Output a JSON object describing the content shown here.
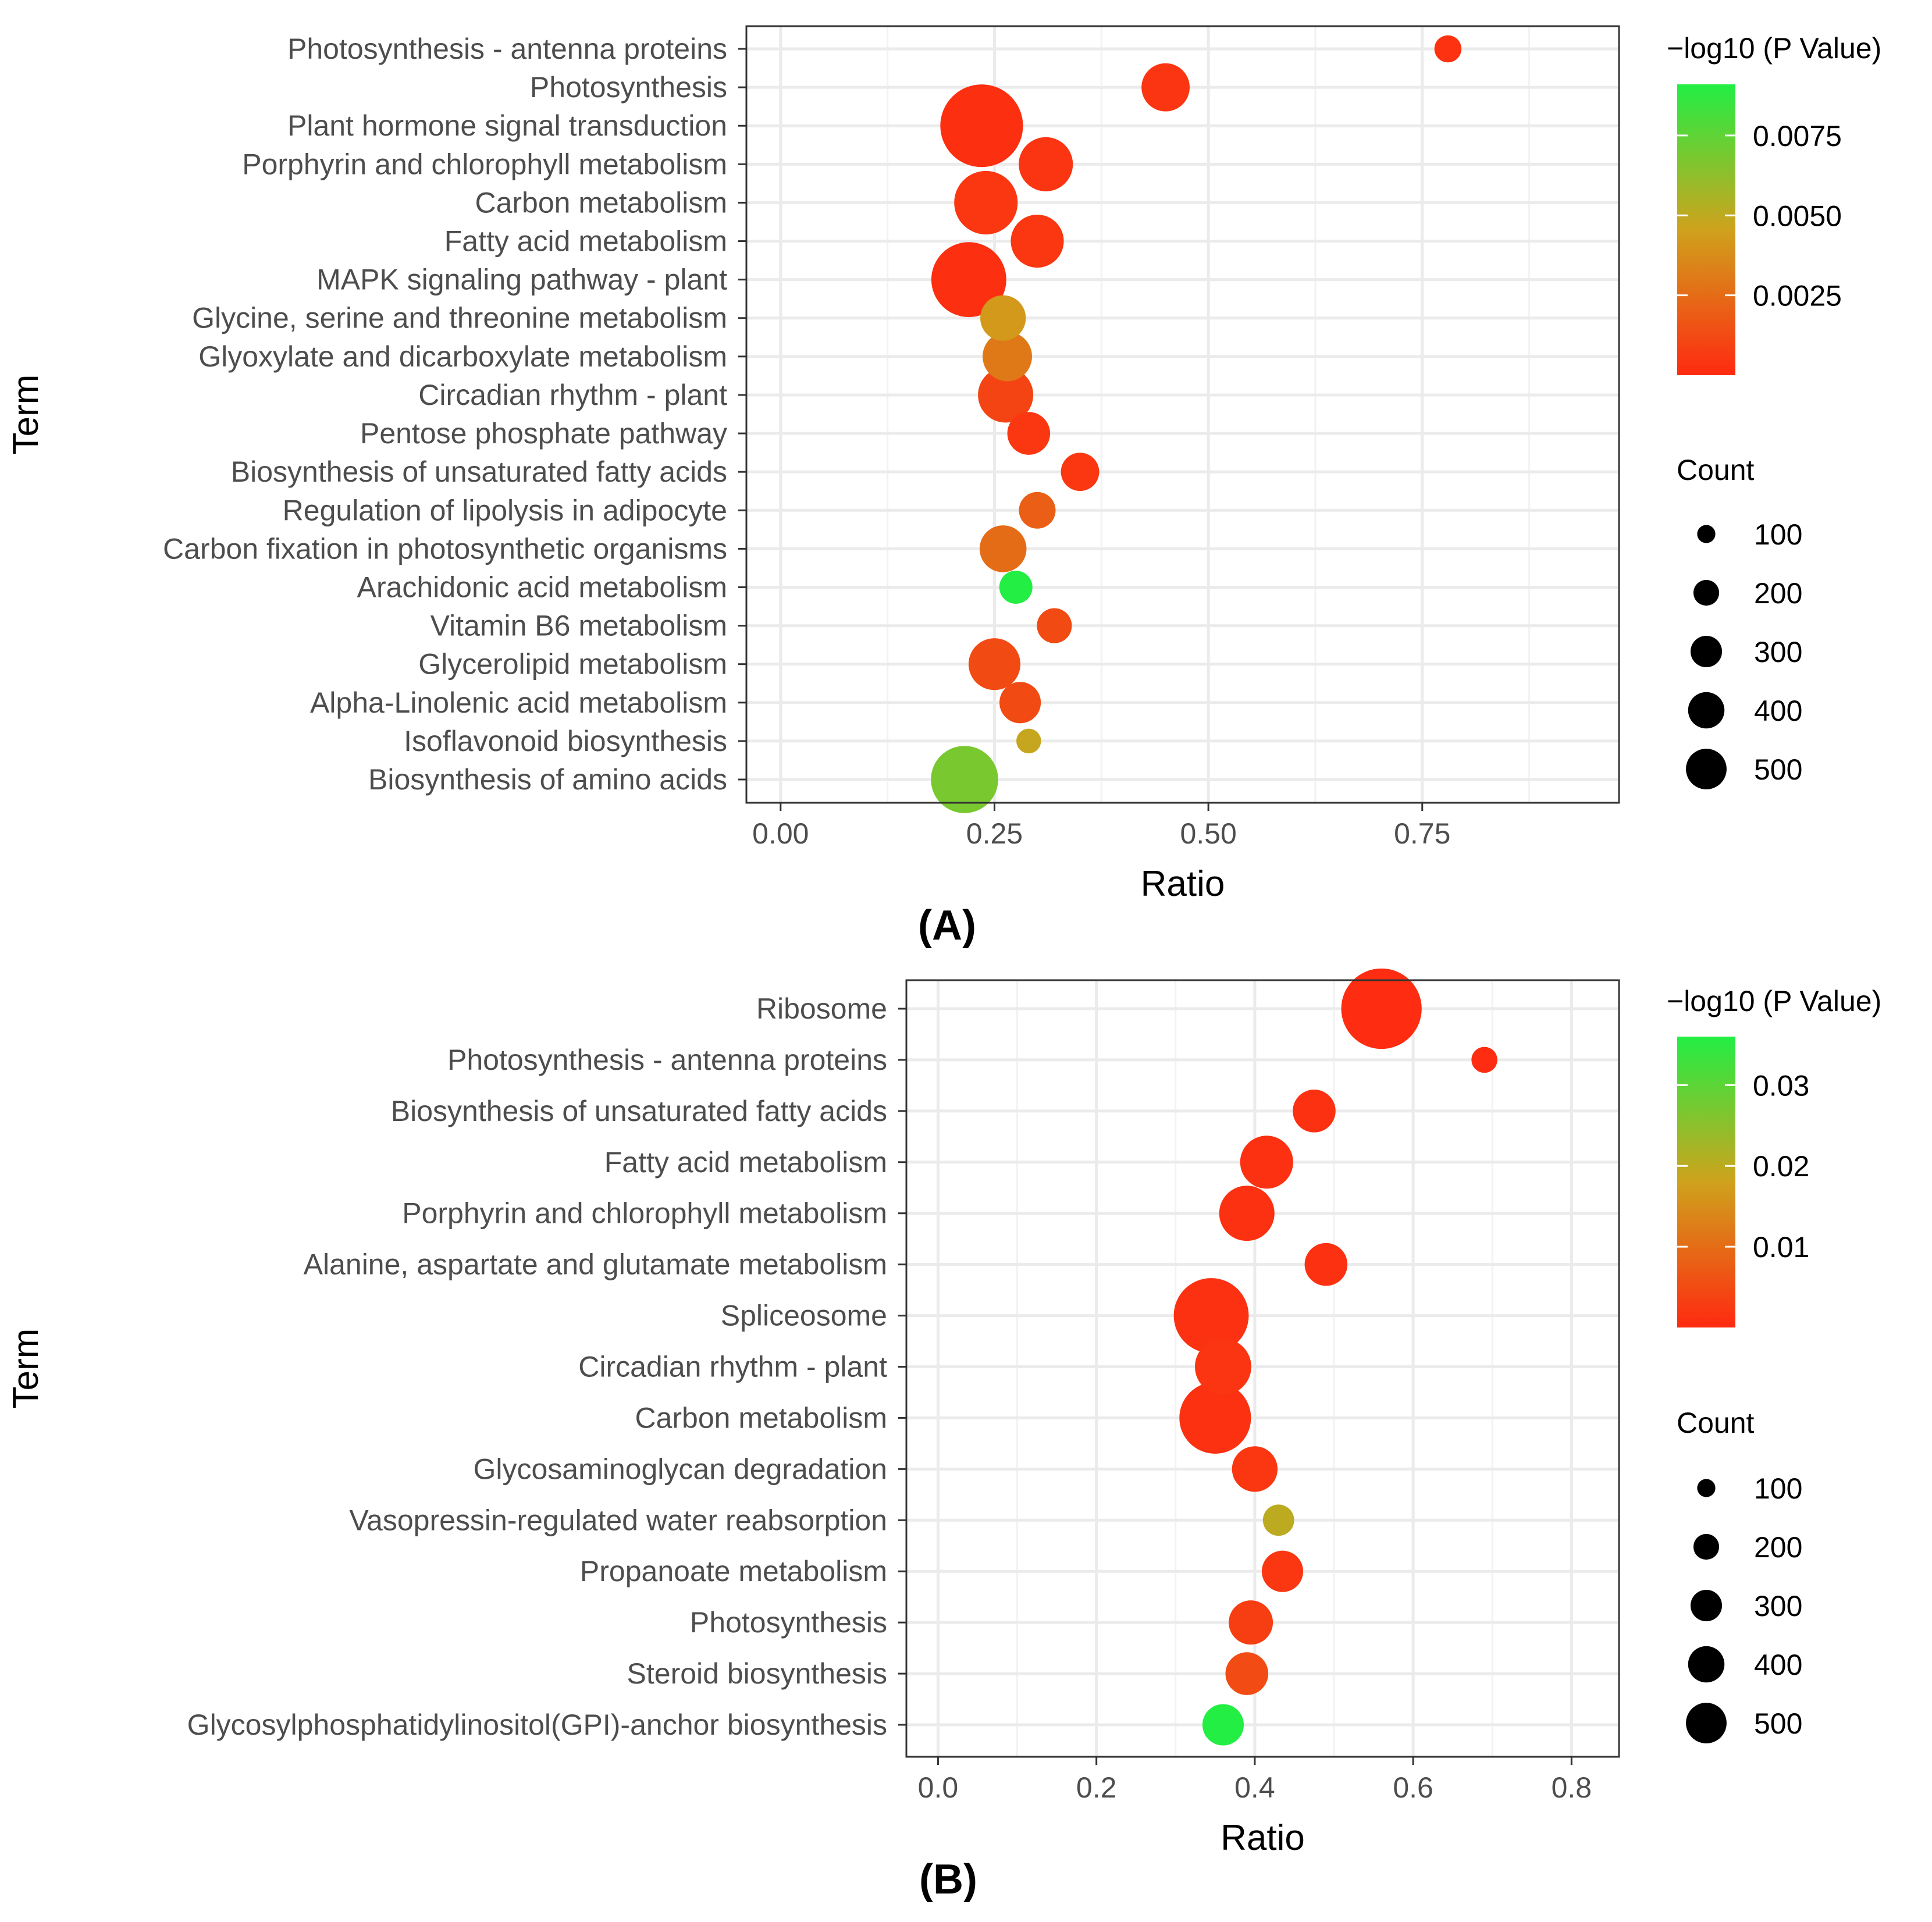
{
  "chart_data": [
    {
      "panel": "(A)",
      "type": "scatter",
      "subtype": "bubble",
      "xlabel": "Ratio",
      "ylabel": "Term",
      "xlim": [
        -0.04,
        0.98
      ],
      "xticks": [
        0.0,
        0.25,
        0.5,
        0.75
      ],
      "xtick_labels": [
        "0.00",
        "0.25",
        "0.50",
        "0.75"
      ],
      "grid": true,
      "color_legend": {
        "title": "−log10 (P Value)",
        "min": 0.0,
        "max": 0.0091,
        "ticks": [
          0.0025,
          0.005,
          0.0075
        ],
        "tick_labels": [
          "0.0025",
          "0.0050",
          "0.0075"
        ],
        "low_color": "#ff2a10",
        "mid_color": "#cfa21c",
        "high_color": "#22ee44"
      },
      "size_legend": {
        "title": "Count",
        "values": [
          100,
          200,
          300,
          400,
          500
        ],
        "labels": [
          "100",
          "200",
          "300",
          "400",
          "500"
        ]
      },
      "terms": [
        {
          "term": "Photosynthesis - antenna proteins",
          "ratio": 0.78,
          "count": 60,
          "p": 0.0003
        },
        {
          "term": "Photosynthesis",
          "ratio": 0.45,
          "count": 190,
          "p": 0.0004
        },
        {
          "term": "Plant hormone signal transduction",
          "ratio": 0.235,
          "count": 560,
          "p": 0.0002
        },
        {
          "term": "Porphyrin and chlorophyll metabolism",
          "ratio": 0.31,
          "count": 240,
          "p": 0.0004
        },
        {
          "term": "Carbon metabolism",
          "ratio": 0.24,
          "count": 330,
          "p": 0.0005
        },
        {
          "term": "Fatty acid metabolism",
          "ratio": 0.3,
          "count": 230,
          "p": 0.0005
        },
        {
          "term": "MAPK signaling pathway - plant",
          "ratio": 0.22,
          "count": 460,
          "p": 0.0002
        },
        {
          "term": "Glycine, serine and threonine metabolism",
          "ratio": 0.26,
          "count": 170,
          "p": 0.0042
        },
        {
          "term": "Glyoxylate and dicarboxylate metabolism",
          "ratio": 0.265,
          "count": 200,
          "p": 0.003
        },
        {
          "term": "Circadian rhythm - plant",
          "ratio": 0.263,
          "count": 250,
          "p": 0.001
        },
        {
          "term": "Pentose phosphate pathway",
          "ratio": 0.29,
          "count": 150,
          "p": 0.0005
        },
        {
          "term": "Biosynthesis of unsaturated fatty acids",
          "ratio": 0.35,
          "count": 120,
          "p": 0.0005
        },
        {
          "term": "Regulation of lipolysis in adipocyte",
          "ratio": 0.3,
          "count": 110,
          "p": 0.002
        },
        {
          "term": "Carbon fixation in photosynthetic organisms",
          "ratio": 0.26,
          "count": 180,
          "p": 0.0025
        },
        {
          "term": "Arachidonic acid metabolism",
          "ratio": 0.275,
          "count": 90,
          "p": 0.0091
        },
        {
          "term": "Vitamin B6 metabolism",
          "ratio": 0.32,
          "count": 100,
          "p": 0.0012
        },
        {
          "term": "Glycerolipid metabolism",
          "ratio": 0.25,
          "count": 220,
          "p": 0.0012
        },
        {
          "term": "Alpha-Linolenic acid metabolism",
          "ratio": 0.28,
          "count": 140,
          "p": 0.0012
        },
        {
          "term": "Isoflavonoid biosynthesis",
          "ratio": 0.29,
          "count": 50,
          "p": 0.0048
        },
        {
          "term": "Biosynthesis of amino acids",
          "ratio": 0.215,
          "count": 370,
          "p": 0.0068
        }
      ]
    },
    {
      "panel": "(B)",
      "type": "scatter",
      "subtype": "bubble",
      "xlabel": "Ratio",
      "ylabel": "Term",
      "xlim": [
        -0.04,
        0.86
      ],
      "xticks": [
        0.0,
        0.2,
        0.4,
        0.6,
        0.8
      ],
      "xtick_labels": [
        "0.0",
        "0.2",
        "0.4",
        "0.6",
        "0.8"
      ],
      "grid": true,
      "color_legend": {
        "title": "−log10 (P Value)",
        "min": 0.0,
        "max": 0.036,
        "ticks": [
          0.01,
          0.02,
          0.03
        ],
        "tick_labels": [
          "0.01",
          "0.02",
          "0.03"
        ],
        "low_color": "#ff2a10",
        "mid_color": "#cfa21c",
        "high_color": "#22ee44"
      },
      "size_legend": {
        "title": "Count",
        "values": [
          100,
          200,
          300,
          400,
          500
        ],
        "labels": [
          "100",
          "200",
          "300",
          "400",
          "500"
        ]
      },
      "terms": [
        {
          "term": "Ribosome",
          "ratio": 0.56,
          "count": 530,
          "p": 0.0003
        },
        {
          "term": "Photosynthesis - antenna proteins",
          "ratio": 0.69,
          "count": 55,
          "p": 0.0003
        },
        {
          "term": "Biosynthesis of unsaturated fatty acids",
          "ratio": 0.475,
          "count": 150,
          "p": 0.001
        },
        {
          "term": "Fatty acid metabolism",
          "ratio": 0.415,
          "count": 230,
          "p": 0.001
        },
        {
          "term": "Porphyrin and chlorophyll metabolism",
          "ratio": 0.39,
          "count": 250,
          "p": 0.001
        },
        {
          "term": "Alanine, aspartate and glutamate metabolism",
          "ratio": 0.49,
          "count": 150,
          "p": 0.001
        },
        {
          "term": "Spliceosome",
          "ratio": 0.345,
          "count": 460,
          "p": 0.001
        },
        {
          "term": "Circadian rhythm - plant",
          "ratio": 0.36,
          "count": 260,
          "p": 0.0015
        },
        {
          "term": "Carbon metabolism",
          "ratio": 0.35,
          "count": 420,
          "p": 0.001
        },
        {
          "term": "Glycosaminoglycan degradation",
          "ratio": 0.4,
          "count": 170,
          "p": 0.002
        },
        {
          "term": "Vasopressin-regulated water reabsorption",
          "ratio": 0.43,
          "count": 80,
          "p": 0.02
        },
        {
          "term": "Propanoate metabolism",
          "ratio": 0.435,
          "count": 140,
          "p": 0.002
        },
        {
          "term": "Photosynthesis",
          "ratio": 0.395,
          "count": 160,
          "p": 0.003
        },
        {
          "term": "Steroid biosynthesis",
          "ratio": 0.39,
          "count": 150,
          "p": 0.005
        },
        {
          "term": "Glycosylphosphatidylinositol(GPI)-anchor biosynthesis",
          "ratio": 0.36,
          "count": 140,
          "p": 0.036
        }
      ]
    }
  ]
}
